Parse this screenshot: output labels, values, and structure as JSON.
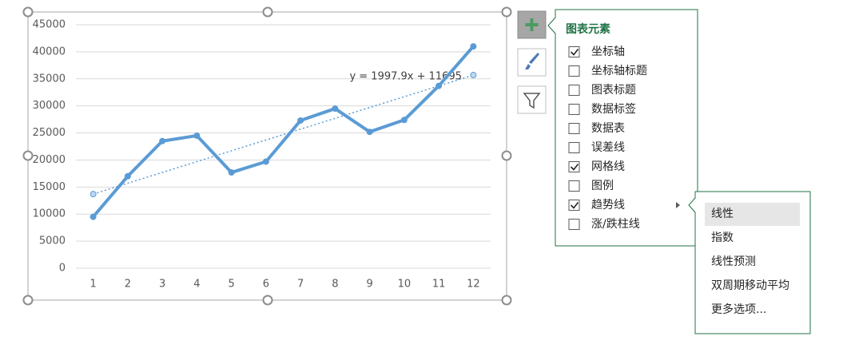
{
  "chart_data": {
    "type": "line",
    "x": [
      1,
      2,
      3,
      4,
      5,
      6,
      7,
      8,
      9,
      10,
      11,
      12
    ],
    "values": [
      9500,
      17000,
      23500,
      24500,
      17700,
      19700,
      27300,
      29500,
      25200,
      27400,
      33700,
      41000
    ],
    "color": "#5b9bd5",
    "trendline": {
      "x": [
        1,
        12
      ],
      "values": [
        13700,
        35700
      ],
      "equation": "y = 1997.9x + 11695",
      "color": "#5b9bd5"
    },
    "xlim": [
      0.5,
      12.5
    ],
    "xticks": [
      1,
      2,
      3,
      4,
      5,
      6,
      7,
      8,
      9,
      10,
      11,
      12
    ],
    "ylim": [
      0,
      45000
    ],
    "yticks": [
      0,
      5000,
      10000,
      15000,
      20000,
      25000,
      30000,
      35000,
      40000,
      45000
    ],
    "grid": true
  },
  "ui": {
    "panel_title": "图表元素",
    "elements": [
      {
        "label": "坐标轴",
        "checked": true
      },
      {
        "label": "坐标轴标题",
        "checked": false
      },
      {
        "label": "图表标题",
        "checked": false
      },
      {
        "label": "数据标签",
        "checked": false
      },
      {
        "label": "数据表",
        "checked": false
      },
      {
        "label": "误差线",
        "checked": false
      },
      {
        "label": "网格线",
        "checked": true
      },
      {
        "label": "图例",
        "checked": false
      },
      {
        "label": "趋势线",
        "checked": true,
        "submenu": true
      },
      {
        "label": "涨/跌柱线",
        "checked": false
      }
    ],
    "submenu": [
      "线性",
      "指数",
      "线性预测",
      "双周期移动平均",
      "更多选项..."
    ],
    "submenu_selected": 0
  }
}
